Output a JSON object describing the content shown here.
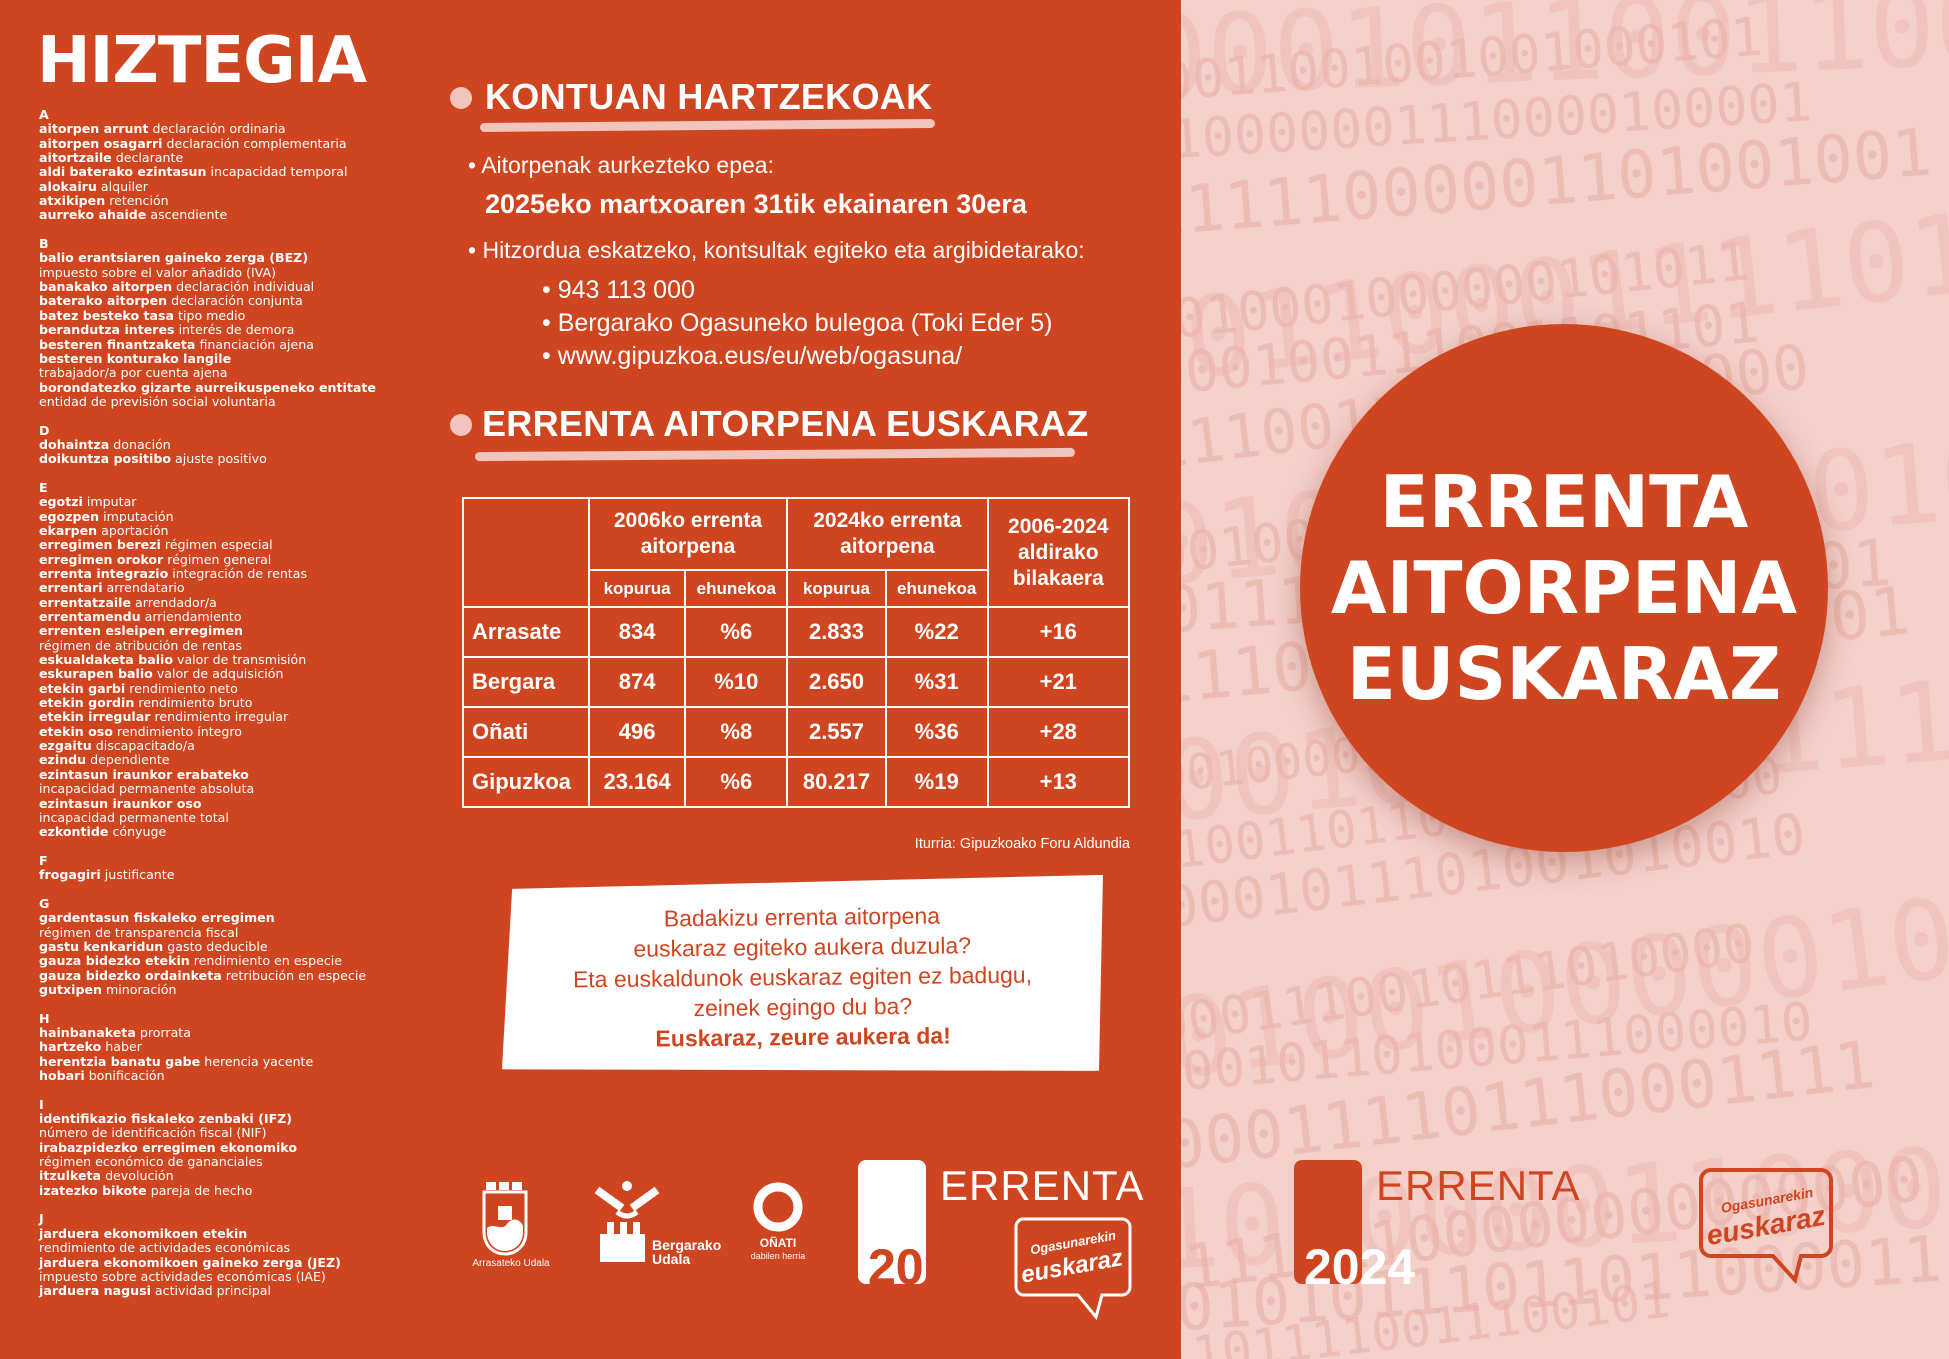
{
  "colors": {
    "primary": "#cf4520",
    "pink": "#f4d0ca",
    "accent_light": "#f1c4bd"
  },
  "glossary": {
    "title": "HIZTEGIA",
    "sections": [
      {
        "letter": "A",
        "entries": [
          [
            "aitorpen arrunt",
            "declaración ordinaria"
          ],
          [
            "aitorpen osagarri",
            "declaración complementaria"
          ],
          [
            "aitortzaile",
            "declarante"
          ],
          [
            "aldi baterako ezintasun",
            "incapacidad temporal"
          ],
          [
            "alokairu",
            "alquiler"
          ],
          [
            "atxikipen",
            "retención"
          ],
          [
            "aurreko ahaide",
            "ascendiente"
          ]
        ]
      },
      {
        "letter": "B",
        "entries": [
          [
            "balio erantsiaren gaineko zerga (BEZ)",
            "impuesto sobre el valor añadido (IVA)",
            true
          ],
          [
            "banakako aitorpen",
            "declaración individual"
          ],
          [
            "baterako aitorpen",
            "declaración conjunta"
          ],
          [
            "batez besteko tasa",
            "tipo medio"
          ],
          [
            "berandutza interes",
            "interés de demora"
          ],
          [
            "besteren finantzaketa",
            "financiación ajena"
          ],
          [
            "besteren konturako langile",
            "trabajador/a por cuenta ajena",
            true
          ],
          [
            "borondatezko gizarte aurreikuspeneko entitate",
            "entidad de previsión social voluntaria",
            true
          ]
        ]
      },
      {
        "letter": "D",
        "entries": [
          [
            "dohaintza",
            "donación"
          ],
          [
            "doikuntza positibo",
            "ajuste positivo"
          ]
        ]
      },
      {
        "letter": "E",
        "entries": [
          [
            "egotzi",
            "imputar"
          ],
          [
            "egozpen",
            "imputación"
          ],
          [
            "ekarpen",
            "aportación"
          ],
          [
            "erregimen berezi",
            "régimen especial"
          ],
          [
            "erregimen orokor",
            "régimen general"
          ],
          [
            "errenta integrazio",
            "integración de rentas"
          ],
          [
            "errentari",
            "arrendatario"
          ],
          [
            "errentatzaile",
            "arrendador/a"
          ],
          [
            "errentamendu",
            "arriendamiento"
          ],
          [
            "errenten esleipen erregimen",
            "régimen de atribución de rentas",
            true
          ],
          [
            "eskualdaketa balio",
            "valor de transmisión"
          ],
          [
            "eskurapen balio",
            "valor de adquisición"
          ],
          [
            "etekin garbi",
            "rendimiento neto"
          ],
          [
            "etekin gordin",
            "rendimiento bruto"
          ],
          [
            "etekin irregular",
            "rendimiento irregular"
          ],
          [
            "etekin oso",
            "rendimiento íntegro"
          ],
          [
            "ezgaitu",
            "discapacitado/a"
          ],
          [
            "ezindu",
            "dependiente"
          ],
          [
            "ezintasun iraunkor erabateko",
            "incapacidad permanente absoluta",
            true
          ],
          [
            "ezintasun iraunkor oso",
            "incapacidad permanente total",
            true
          ],
          [
            "ezkontide",
            "cónyuge"
          ]
        ]
      },
      {
        "letter": "F",
        "entries": [
          [
            "frogagiri",
            "justificante"
          ]
        ]
      },
      {
        "letter": "G",
        "entries": [
          [
            "gardentasun fiskaleko erregimen",
            "régimen de transparencia fiscal",
            true
          ],
          [
            "gastu kenkaridun",
            "gasto deducible"
          ],
          [
            "gauza bidezko etekin",
            "rendimiento en especie"
          ],
          [
            "gauza bidezko ordainketa",
            "retribución en especie"
          ],
          [
            "gutxipen",
            "minoración"
          ]
        ]
      },
      {
        "letter": "H",
        "entries": [
          [
            "hainbanaketa",
            "prorrata"
          ],
          [
            "hartzeko",
            "haber"
          ],
          [
            "herentzia banatu gabe",
            "herencia yacente"
          ],
          [
            "hobari",
            "bonificación"
          ]
        ]
      },
      {
        "letter": "I",
        "entries": [
          [
            "identifikazio fiskaleko zenbaki (IFZ)",
            "número de identificación fiscal (NIF)",
            true
          ],
          [
            "irabazpidezko erregimen ekonomiko",
            "régimen económico de gananciales",
            true
          ],
          [
            "itzulketa",
            "devolución"
          ],
          [
            "izatezko bikote",
            "pareja de hecho"
          ]
        ]
      },
      {
        "letter": "J",
        "entries": [
          [
            "jarduera ekonomikoen etekin",
            "rendimiento de actividades económicas",
            true
          ],
          [
            "jarduera ekonomikoen gaineko zerga (JEZ)",
            "impuesto sobre actividades económicas (IAE)",
            true
          ],
          [
            "jarduera nagusi",
            "actividad principal"
          ]
        ]
      }
    ]
  },
  "kontuan": {
    "title": "KONTUAN HARTZEKOAK",
    "deadline_label": "Aitorpenak aurkezteko epea:",
    "deadline": "2025eko martxoaren 31tik ekainaren 30era",
    "contact_label": "Hitzordua eskatzeko, kontsultak egiteko eta argibidetarako:",
    "contacts": [
      "943 113 000",
      "Bergarako Ogasuneko bulegoa (Toki Eder 5)",
      "www.gipuzkoa.eus/eu/web/ogasuna/"
    ]
  },
  "stats": {
    "title": "ERRENTA AITORPENA EUSKARAZ",
    "headers": {
      "y2006": "2006ko errenta aitorpena",
      "y2024": "2024ko errenta aitorpena",
      "change": "2006-2024 aldirako bilakaera",
      "count": "kopurua",
      "percent": "ehunekoa"
    },
    "rows": [
      {
        "place": "Arrasate",
        "c2006": "834",
        "p2006": "%6",
        "c2024": "2.833",
        "p2024": "%22",
        "change": "+16"
      },
      {
        "place": "Bergara",
        "c2006": "874",
        "p2006": "%10",
        "c2024": "2.650",
        "p2024": "%31",
        "change": "+21"
      },
      {
        "place": "Oñati",
        "c2006": "496",
        "p2006": "%8",
        "c2024": "2.557",
        "p2024": "%36",
        "change": "+28"
      },
      {
        "place": "Gipuzkoa",
        "c2006": "23.164",
        "p2006": "%6",
        "c2024": "80.217",
        "p2024": "%19",
        "change": "+13"
      }
    ],
    "source": "Iturria: Gipuzkoako Foru Aldundia"
  },
  "note": {
    "lines": [
      "Badakizu errenta aitorpena",
      "euskaraz egiteko aukera duzula?",
      "Eta euskaldunok euskaraz egiten ez badugu,",
      "zeinek egingo du ba?"
    ],
    "highlight": "Euskaraz, zeure aukera da!"
  },
  "logos": {
    "arrasate": "Arrasateko Udala",
    "bergara": "Bergarako Udala",
    "onati": "OÑATI",
    "onati_sub": "dabilen herria",
    "errenta": "ERRENTA",
    "year": "2024",
    "ogasuna_top": "Ogasunarekin",
    "ogasuna_bottom": "euskaraz"
  },
  "cover": {
    "lines": [
      "ERRENTA",
      "AITORPENA",
      "EUSKARAZ"
    ]
  }
}
